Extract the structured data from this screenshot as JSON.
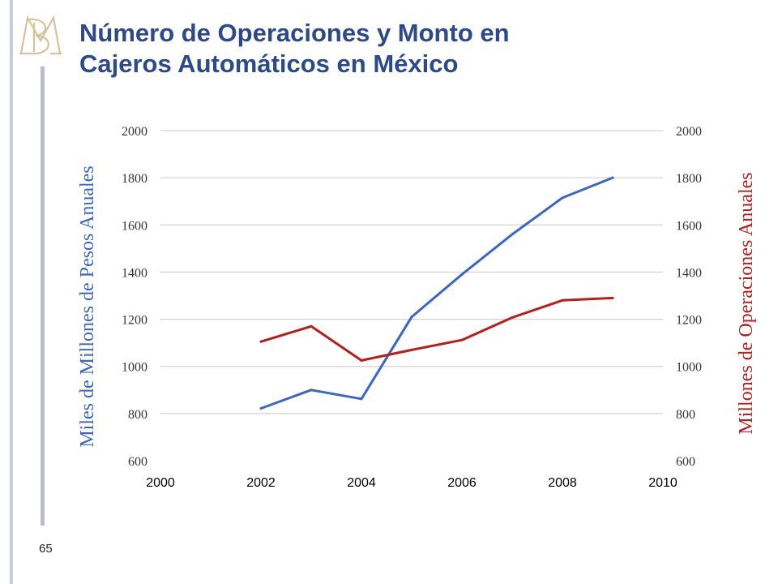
{
  "slide": {
    "title_line1": "Número de Operaciones y Monto en",
    "title_line2": "Cajeros Automáticos en México",
    "page_number": "65",
    "logo_icon": "banxico-monogram-icon"
  },
  "colors": {
    "title": "#2c4a8a",
    "monto_line": "#3a67c4",
    "operaciones_line": "#b81c1c",
    "gridline": "#c8c8c8",
    "logo": "#d7c39a"
  },
  "chart_data": {
    "type": "line",
    "title": "",
    "xlabel": "",
    "ylabel": "Miles de Millones de Pesos Anuales",
    "y2label": "Millones de Operaciones Anuales",
    "xlim": [
      2000,
      2010
    ],
    "ylim": [
      600,
      2000
    ],
    "y2lim": [
      600,
      2000
    ],
    "xticks": [
      2000,
      2002,
      2004,
      2006,
      2008,
      2010
    ],
    "yticks": [
      600,
      800,
      1000,
      1200,
      1400,
      1600,
      1800,
      2000
    ],
    "y2ticks": [
      600,
      800,
      1000,
      1200,
      1400,
      1600,
      1800,
      2000
    ],
    "grid": "horizontal",
    "legend": "none",
    "series": [
      {
        "axis": "left",
        "color": "#3a67c4",
        "x": [
          2002,
          2003,
          2004,
          2005,
          2006,
          2007,
          2008,
          2009
        ],
        "values": [
          822,
          900,
          862,
          1210,
          1390,
          1560,
          1715,
          1800
        ]
      },
      {
        "axis": "right",
        "color": "#b81c1c",
        "x": [
          2002,
          2003,
          2004,
          2005,
          2006,
          2007,
          2008,
          2009
        ],
        "values": [
          1105,
          1170,
          1025,
          1070,
          1112,
          1207,
          1280,
          1290
        ]
      }
    ]
  }
}
